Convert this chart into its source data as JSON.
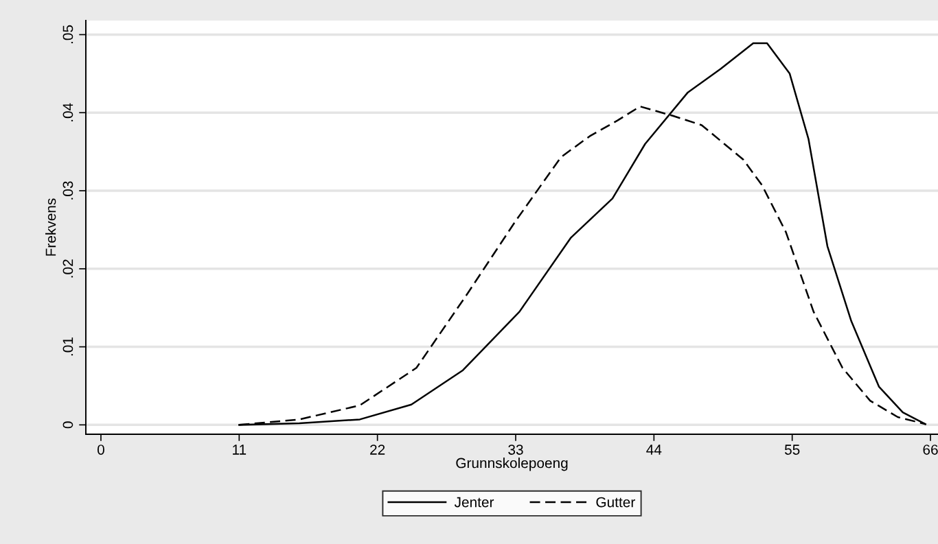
{
  "chart_data": {
    "type": "line",
    "xlabel": "Grunnskolepoeng",
    "ylabel": "Frekvens",
    "xlim": [
      -1.2,
      66.6
    ],
    "xticks": [
      0,
      11,
      22,
      33,
      44,
      55,
      66
    ],
    "ylim": [
      -0.0012,
      0.0518
    ],
    "yticks": [
      {
        "value": 0,
        "label": "0"
      },
      {
        "value": 0.01,
        "label": ".01"
      },
      {
        "value": 0.02,
        "label": ".02"
      },
      {
        "value": 0.03,
        "label": ".03"
      },
      {
        "value": 0.04,
        "label": ".04"
      },
      {
        "value": 0.05,
        "label": ".05"
      }
    ],
    "grid": "y",
    "legend": "bottom",
    "series": [
      {
        "name": "Jenter",
        "color": "#000000",
        "line_style": "solid",
        "x": [
          11.0,
          15.8,
          20.6,
          24.7,
          28.8,
          33.3,
          37.4,
          40.7,
          43.3,
          46.7,
          49.3,
          51.9,
          53.0,
          54.8,
          56.3,
          57.8,
          59.7,
          61.9,
          63.8,
          65.6
        ],
        "values": [
          0,
          0.0002,
          0.0007,
          0.0026,
          0.007,
          0.0145,
          0.024,
          0.029,
          0.036,
          0.0426,
          0.0456,
          0.0489,
          0.0489,
          0.045,
          0.0366,
          0.0229,
          0.0133,
          0.0049,
          0.0016,
          0.0001
        ]
      },
      {
        "name": "Gutter",
        "color": "#000000",
        "line_style": "dashed",
        "x": [
          11.0,
          15.8,
          20.6,
          25.1,
          29.2,
          32.9,
          36.6,
          38.9,
          41.1,
          42.9,
          45.5,
          47.8,
          51.1,
          52.6,
          54.5,
          56.7,
          59.0,
          61.2,
          63.4,
          65.6
        ],
        "values": [
          0,
          0.0007,
          0.0025,
          0.0073,
          0.0169,
          0.0259,
          0.0343,
          0.037,
          0.039,
          0.0408,
          0.0396,
          0.0384,
          0.034,
          0.0307,
          0.0247,
          0.0145,
          0.0073,
          0.0031,
          0.001,
          0.0001
        ]
      }
    ]
  }
}
